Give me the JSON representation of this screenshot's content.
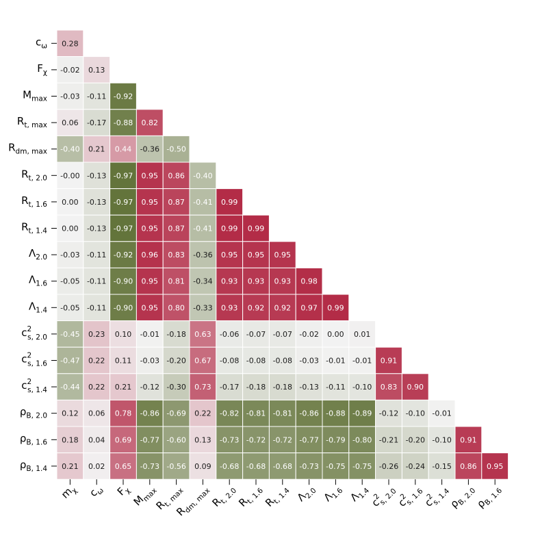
{
  "chart_data": {
    "type": "heatmap",
    "title": "",
    "xlabel": "",
    "ylabel": "",
    "colorscale": {
      "negative": "#5f7035",
      "zero": "#f2f2f2",
      "positive": "#b22a45"
    },
    "grid": false,
    "x_labels": [
      {
        "base": "m",
        "sub": "χ"
      },
      {
        "base": "c",
        "sub": "ω"
      },
      {
        "base": "F",
        "sub": "χ"
      },
      {
        "base": "M",
        "sub": "max"
      },
      {
        "base": "R",
        "sub": "t, max"
      },
      {
        "base": "R",
        "sub": "dm, max"
      },
      {
        "base": "R",
        "sub": "t, 2.0"
      },
      {
        "base": "R",
        "sub": "t, 1.6"
      },
      {
        "base": "R",
        "sub": "t, 1.4"
      },
      {
        "base": "Λ",
        "sub": "2.0"
      },
      {
        "base": "Λ",
        "sub": "1.6"
      },
      {
        "base": "Λ",
        "sub": "1.4"
      },
      {
        "base": "c",
        "sub": "s, 2.0",
        "sup": "2"
      },
      {
        "base": "c",
        "sub": "s, 1.6",
        "sup": "2"
      },
      {
        "base": "c",
        "sub": "s, 1.4",
        "sup": "2"
      },
      {
        "base": "ρ",
        "sub": "B, 2.0"
      },
      {
        "base": "ρ",
        "sub": "B, 1.6"
      }
    ],
    "y_labels": [
      {
        "base": "c",
        "sub": "ω"
      },
      {
        "base": "F",
        "sub": "χ"
      },
      {
        "base": "M",
        "sub": "max"
      },
      {
        "base": "R",
        "sub": "t, max"
      },
      {
        "base": "R",
        "sub": "dm, max"
      },
      {
        "base": "R",
        "sub": "t, 2.0"
      },
      {
        "base": "R",
        "sub": "t, 1.6"
      },
      {
        "base": "R",
        "sub": "t, 1.4"
      },
      {
        "base": "Λ",
        "sub": "2.0"
      },
      {
        "base": "Λ",
        "sub": "1.6"
      },
      {
        "base": "Λ",
        "sub": "1.4"
      },
      {
        "base": "c",
        "sub": "s, 2.0",
        "sup": "2"
      },
      {
        "base": "c",
        "sub": "s, 1.6",
        "sup": "2"
      },
      {
        "base": "c",
        "sub": "s, 1.4",
        "sup": "2"
      },
      {
        "base": "ρ",
        "sub": "B, 2.0"
      },
      {
        "base": "ρ",
        "sub": "B, 1.6"
      },
      {
        "base": "ρ",
        "sub": "B, 1.4"
      }
    ],
    "values": [
      [
        0.28
      ],
      [
        -0.02,
        0.13
      ],
      [
        -0.03,
        -0.11,
        -0.92
      ],
      [
        0.06,
        -0.17,
        -0.88,
        0.82
      ],
      [
        -0.4,
        0.21,
        0.44,
        -0.36,
        -0.5
      ],
      [
        -0.0,
        -0.13,
        -0.97,
        0.95,
        0.86,
        -0.4
      ],
      [
        0.0,
        -0.13,
        -0.97,
        0.95,
        0.87,
        -0.41,
        0.99
      ],
      [
        0.0,
        -0.13,
        -0.97,
        0.95,
        0.87,
        -0.41,
        0.99,
        0.99
      ],
      [
        -0.03,
        -0.11,
        -0.92,
        0.96,
        0.83,
        -0.36,
        0.95,
        0.95,
        0.95
      ],
      [
        -0.05,
        -0.11,
        -0.9,
        0.95,
        0.81,
        -0.34,
        0.93,
        0.93,
        0.93,
        0.98
      ],
      [
        -0.05,
        -0.11,
        -0.9,
        0.95,
        0.8,
        -0.33,
        0.93,
        0.92,
        0.92,
        0.97,
        0.99
      ],
      [
        -0.45,
        0.23,
        0.1,
        -0.01,
        -0.18,
        0.63,
        -0.06,
        -0.07,
        -0.07,
        -0.02,
        0.0,
        0.01
      ],
      [
        -0.47,
        0.22,
        0.11,
        -0.03,
        -0.2,
        0.67,
        -0.08,
        -0.08,
        -0.08,
        -0.03,
        -0.01,
        -0.01,
        0.91
      ],
      [
        -0.44,
        0.22,
        0.21,
        -0.12,
        -0.3,
        0.73,
        -0.17,
        -0.18,
        -0.18,
        -0.13,
        -0.11,
        -0.1,
        0.83,
        0.9
      ],
      [
        0.12,
        0.06,
        0.78,
        -0.86,
        -0.69,
        0.22,
        -0.82,
        -0.81,
        -0.81,
        -0.86,
        -0.88,
        -0.89,
        -0.12,
        -0.1,
        -0.01
      ],
      [
        0.18,
        0.04,
        0.69,
        -0.77,
        -0.6,
        0.13,
        -0.73,
        -0.72,
        -0.72,
        -0.77,
        -0.79,
        -0.8,
        -0.21,
        -0.2,
        -0.1,
        0.91
      ],
      [
        0.21,
        0.02,
        0.65,
        -0.73,
        -0.56,
        0.09,
        -0.68,
        -0.68,
        -0.68,
        -0.73,
        -0.75,
        -0.75,
        -0.26,
        -0.24,
        -0.15,
        0.86,
        0.95
      ]
    ]
  }
}
